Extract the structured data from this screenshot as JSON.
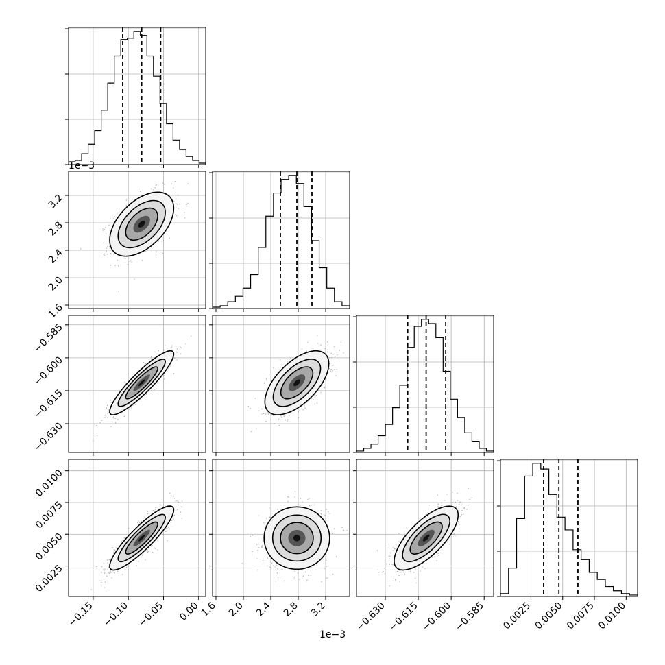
{
  "chart_data": {
    "type": "corner",
    "n_params": 4,
    "params": [
      {
        "name": "",
        "range": [
          -0.185,
          0.01
        ],
        "ticks": [
          -0.15,
          -0.1,
          -0.05,
          0.0
        ],
        "tick_labels": [
          "−0.15",
          "−0.10",
          "−0.05",
          "0.00"
        ],
        "quantiles": [
          -0.108,
          -0.081,
          -0.054
        ],
        "hist_counts": [
          0.02,
          0.03,
          0.08,
          0.15,
          0.25,
          0.4,
          0.6,
          0.8,
          0.92,
          0.93,
          0.98,
          0.95,
          0.8,
          0.65,
          0.45,
          0.3,
          0.18,
          0.11,
          0.06,
          0.03,
          0.01
        ]
      },
      {
        "name": "",
        "range": [
          1.55,
          3.55
        ],
        "ticks": [
          1.6,
          2.0,
          2.4,
          2.8,
          3.2
        ],
        "tick_labels": [
          "1.6",
          "2.0",
          "2.4",
          "2.8",
          "3.2"
        ],
        "offset_label": "1e−3",
        "quantiles": [
          2.54,
          2.78,
          3.0
        ],
        "hist_counts": [
          0.01,
          0.02,
          0.05,
          0.09,
          0.15,
          0.25,
          0.45,
          0.68,
          0.85,
          0.95,
          0.98,
          0.92,
          0.75,
          0.5,
          0.3,
          0.15,
          0.05,
          0.02
        ]
      },
      {
        "name": "",
        "range": [
          -0.6431,
          -0.5807
        ],
        "ticks": [
          -0.63,
          -0.615,
          -0.6,
          -0.585
        ],
        "tick_labels": [
          "−0.630",
          "−0.615",
          "−0.600",
          "−0.585"
        ],
        "quantiles": [
          -0.6198,
          -0.6114,
          -0.6025
        ],
        "hist_counts": [
          0.01,
          0.03,
          0.06,
          0.12,
          0.2,
          0.32,
          0.48,
          0.75,
          0.9,
          0.95,
          0.92,
          0.82,
          0.58,
          0.38,
          0.25,
          0.14,
          0.08,
          0.03,
          0.01
        ]
      },
      {
        "name": "",
        "range": [
          0.0001,
          0.0109
        ],
        "ticks": [
          0.0025,
          0.005,
          0.0075,
          0.01
        ],
        "tick_labels": [
          "0.0025",
          "0.0050",
          "0.0075",
          "0.0100"
        ],
        "quantiles": [
          0.0035,
          0.0047,
          0.0062
        ],
        "hist_counts": [
          0.02,
          0.2,
          0.55,
          0.85,
          0.94,
          0.9,
          0.72,
          0.56,
          0.47,
          0.33,
          0.26,
          0.17,
          0.12,
          0.07,
          0.04,
          0.02,
          0.01
        ]
      }
    ],
    "correlations": [
      [
        1,
        0.5,
        0.9,
        0.88
      ],
      [
        0.5,
        1,
        0.6,
        0.05
      ],
      [
        0.9,
        0.6,
        1,
        0.72
      ],
      [
        0.88,
        0.05,
        0.72,
        1
      ]
    ],
    "grid": true,
    "contour_levels": 3
  }
}
